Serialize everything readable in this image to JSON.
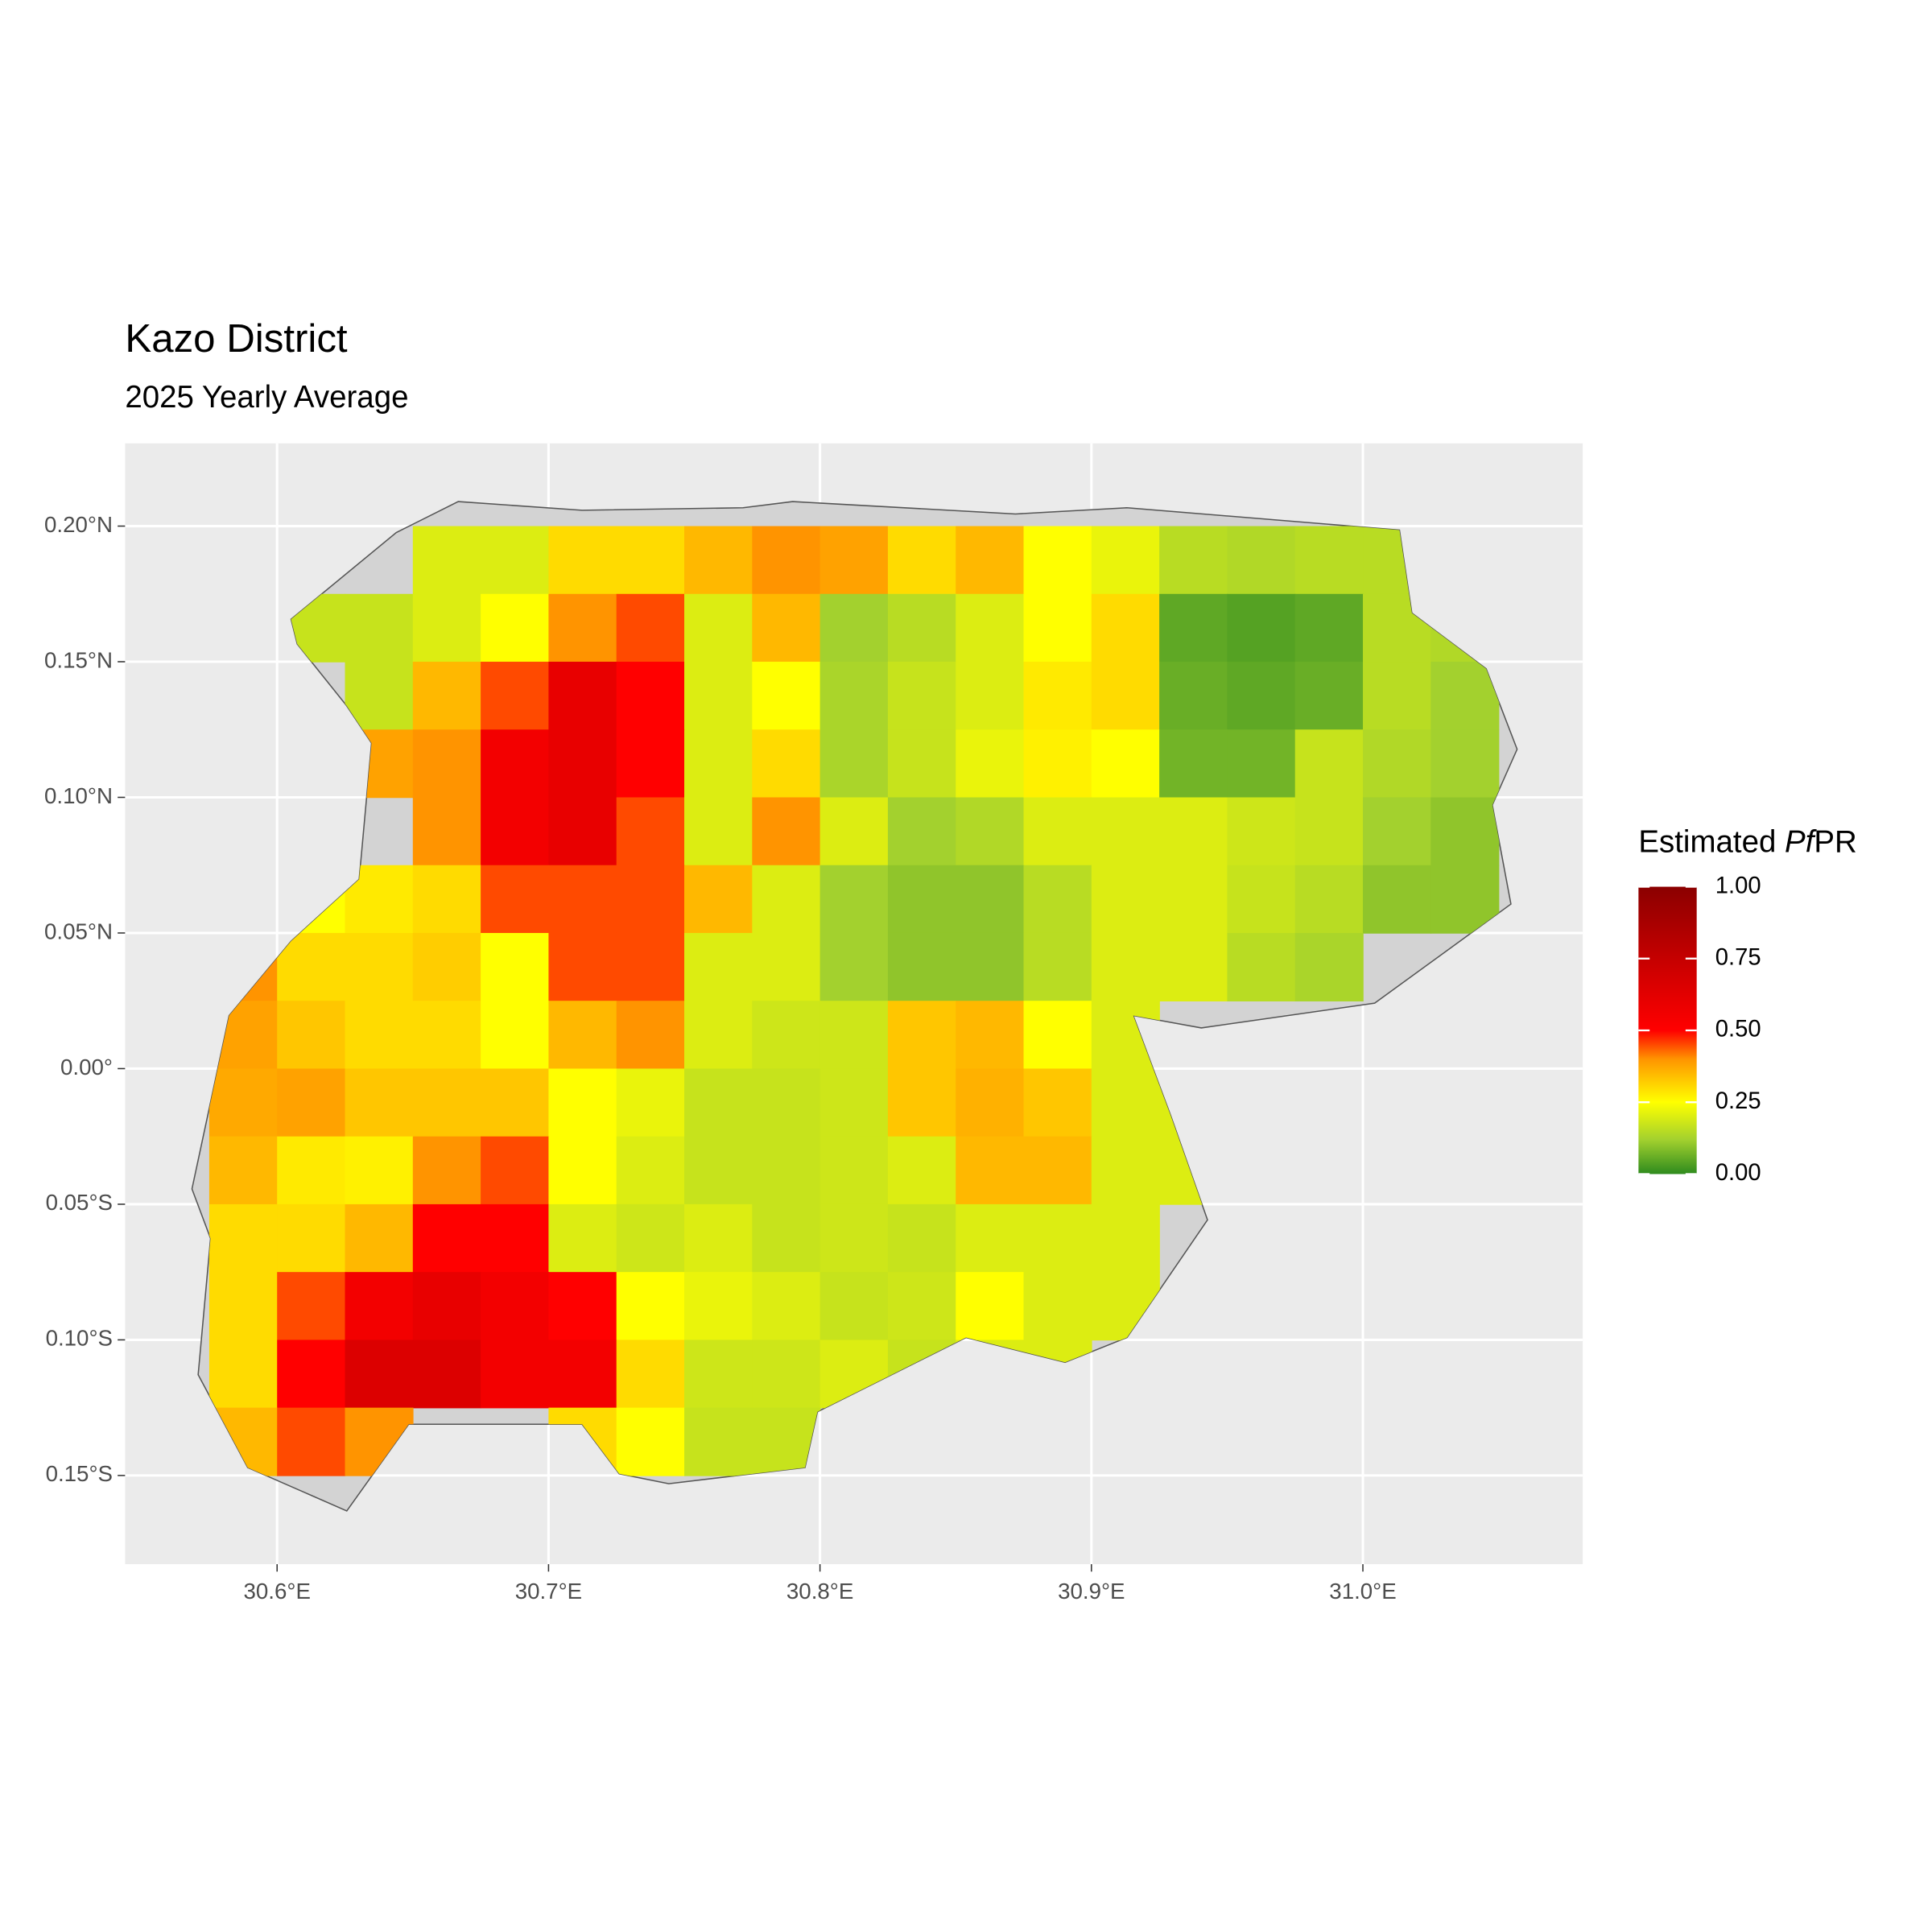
{
  "chart_data": {
    "type": "raster",
    "title": "Kazo District",
    "subtitle": "2025 Yearly Average",
    "legend_title": [
      "Estimated",
      "Pf",
      "PR"
    ],
    "xlim": [
      30.544,
      31.081
    ],
    "ylim": [
      -0.1827,
      0.2305
    ],
    "xticks": [
      {
        "value": 30.6,
        "label": "30.6°E"
      },
      {
        "value": 30.7,
        "label": "30.7°E"
      },
      {
        "value": 30.8,
        "label": "30.8°E"
      },
      {
        "value": 30.9,
        "label": "30.9°E"
      },
      {
        "value": 31.0,
        "label": "31.0°E"
      }
    ],
    "yticks": [
      {
        "value": 0.2,
        "label": "0.20°N"
      },
      {
        "value": 0.15,
        "label": "0.15°N"
      },
      {
        "value": 0.1,
        "label": "0.10°N"
      },
      {
        "value": 0.05,
        "label": "0.05°N"
      },
      {
        "value": 0,
        "label": "0.00°"
      },
      {
        "value": -0.05,
        "label": "0.05°S"
      },
      {
        "value": -0.1,
        "label": "0.10°S"
      },
      {
        "value": -0.15,
        "label": "0.15°S"
      }
    ],
    "legend_ticks": [
      {
        "value": 0,
        "label": "0.00"
      },
      {
        "value": 0.25,
        "label": "0.25"
      },
      {
        "value": 0.5,
        "label": "0.50"
      },
      {
        "value": 0.75,
        "label": "0.75"
      },
      {
        "value": 1,
        "label": "1.00"
      }
    ],
    "colorscale": [
      {
        "value": 0,
        "color": "#2e8b1e"
      },
      {
        "value": 0.12,
        "color": "#a3d12e"
      },
      {
        "value": 0.25,
        "color": "#ffff00"
      },
      {
        "value": 0.4,
        "color": "#ff9400"
      },
      {
        "value": 0.5,
        "color": "#ff0000"
      },
      {
        "value": 1,
        "color": "#8b0000"
      }
    ],
    "grid": true,
    "cell_size": 0.025,
    "lon": [
      30.5875,
      30.6125,
      30.6375,
      30.6625,
      30.6875,
      30.7125,
      30.7375,
      30.7625,
      30.7875,
      30.8125,
      30.8375,
      30.8625,
      30.8875,
      30.9125,
      30.9375,
      30.9625,
      30.9875,
      31.0125,
      31.0375
    ],
    "lat": [
      0.1875,
      0.1625,
      0.1375,
      0.1125,
      0.0875,
      0.0625,
      0.0375,
      0.0125,
      -0.0125,
      -0.0375,
      -0.0625,
      -0.0875,
      -0.1125,
      -0.1375
    ],
    "values": [
      [
        null,
        null,
        null,
        0.2,
        0.2,
        0.3,
        0.3,
        0.35,
        0.4,
        0.38,
        0.3,
        0.35,
        0.25,
        0.22,
        0.15,
        0.14,
        0.15,
        0.15,
        null
      ],
      [
        null,
        0.17,
        0.17,
        0.2,
        0.25,
        0.4,
        0.45,
        0.2,
        0.35,
        0.12,
        0.15,
        0.2,
        0.25,
        0.3,
        0.05,
        0.04,
        0.05,
        0.15,
        0.14
      ],
      [
        null,
        null,
        0.17,
        0.35,
        0.45,
        0.6,
        0.5,
        0.2,
        0.25,
        0.13,
        0.17,
        0.2,
        0.28,
        0.3,
        0.06,
        0.05,
        0.06,
        0.15,
        0.12
      ],
      [
        null,
        null,
        0.38,
        0.4,
        0.55,
        0.6,
        0.5,
        0.2,
        0.3,
        0.13,
        0.17,
        0.22,
        0.27,
        0.25,
        0.07,
        0.07,
        0.17,
        0.14,
        0.12
      ],
      [
        null,
        null,
        null,
        0.4,
        0.55,
        0.6,
        0.45,
        0.2,
        0.4,
        0.2,
        0.12,
        0.14,
        0.2,
        0.2,
        0.2,
        0.18,
        0.17,
        0.12,
        0.1
      ],
      [
        null,
        0.25,
        0.28,
        0.3,
        0.45,
        0.45,
        0.45,
        0.35,
        0.2,
        0.12,
        0.1,
        0.1,
        0.15,
        0.2,
        0.2,
        0.17,
        0.15,
        0.1,
        0.1
      ],
      [
        0.4,
        0.3,
        0.3,
        0.32,
        0.25,
        0.45,
        0.45,
        0.2,
        0.2,
        0.12,
        0.1,
        0.1,
        0.15,
        0.2,
        0.2,
        0.15,
        0.13,
        null,
        null
      ],
      [
        0.38,
        0.33,
        0.3,
        0.3,
        0.25,
        0.35,
        0.4,
        0.2,
        0.18,
        0.18,
        0.33,
        0.35,
        0.25,
        0.2,
        null,
        null,
        null,
        null,
        null
      ],
      [
        0.37,
        0.38,
        0.33,
        0.33,
        0.33,
        0.25,
        0.22,
        0.17,
        0.17,
        0.18,
        0.33,
        0.36,
        0.33,
        0.2,
        0.2,
        null,
        null,
        null,
        null
      ],
      [
        0.35,
        0.28,
        0.27,
        0.4,
        0.45,
        0.25,
        0.2,
        0.17,
        0.17,
        0.18,
        0.2,
        0.35,
        0.35,
        0.2,
        0.2,
        null,
        null,
        null,
        null
      ],
      [
        0.3,
        0.3,
        0.35,
        0.5,
        0.5,
        0.2,
        0.18,
        0.2,
        0.17,
        0.18,
        0.17,
        0.2,
        0.2,
        0.2,
        null,
        null,
        null,
        null,
        null
      ],
      [
        0.3,
        0.45,
        0.55,
        0.6,
        0.55,
        0.5,
        0.25,
        0.22,
        0.2,
        0.17,
        0.18,
        0.25,
        0.2,
        0.2,
        null,
        null,
        null,
        null,
        null
      ],
      [
        0.3,
        0.5,
        0.65,
        0.65,
        0.55,
        0.55,
        0.3,
        0.18,
        0.18,
        0.2,
        0.17,
        0.2,
        0.2,
        null,
        null,
        null,
        null,
        null,
        null
      ],
      [
        0.35,
        0.45,
        0.4,
        null,
        null,
        0.3,
        0.25,
        0.17,
        0.17,
        null,
        null,
        null,
        null,
        null,
        null,
        null,
        null,
        null,
        null
      ]
    ]
  }
}
